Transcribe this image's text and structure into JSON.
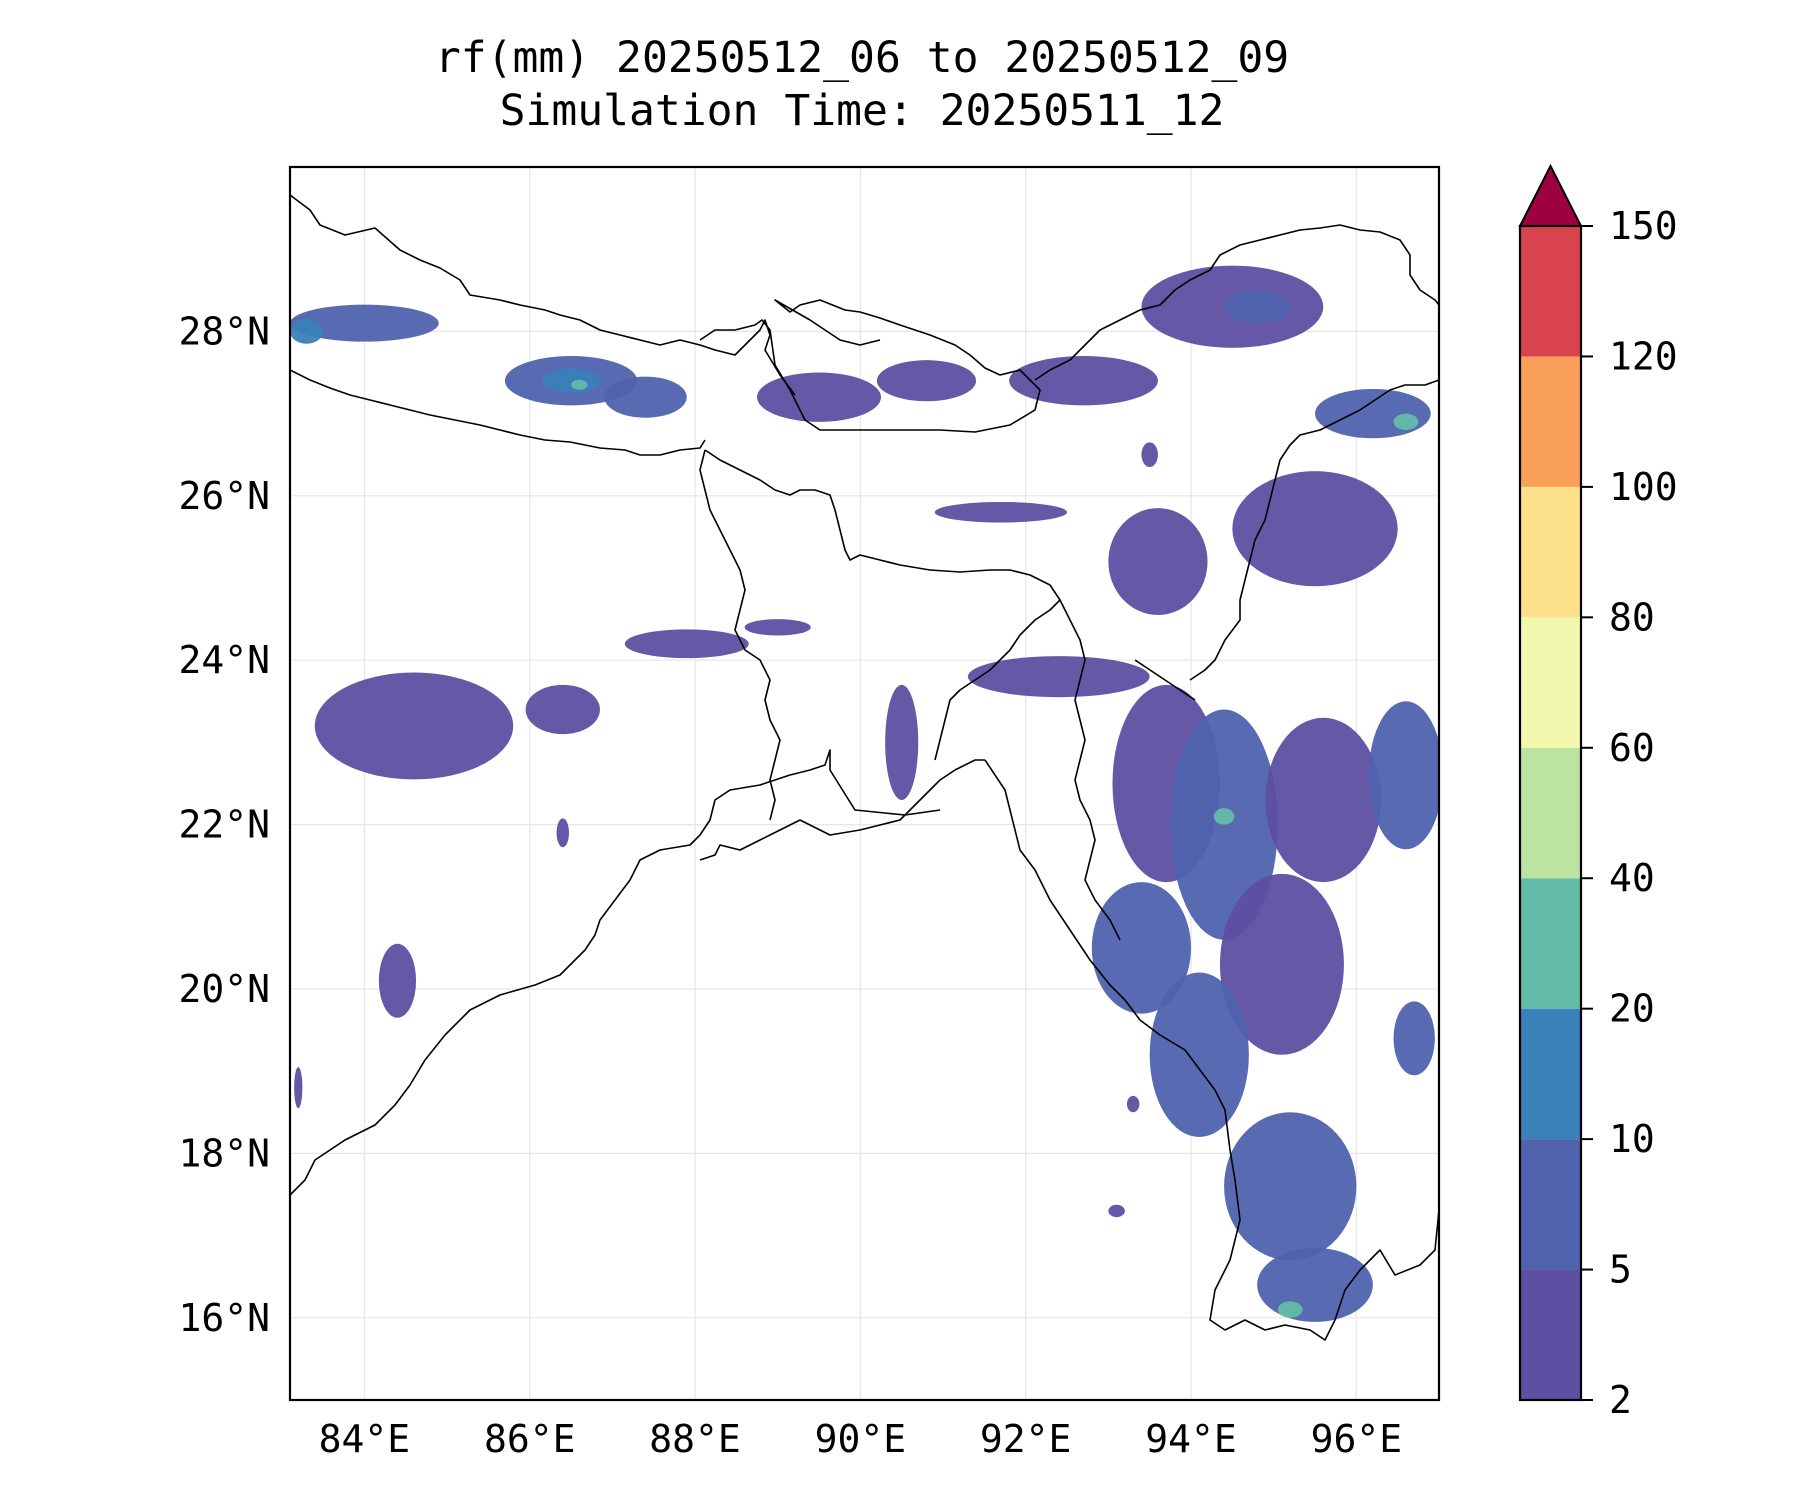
{
  "chart_data": {
    "type": "heatmap",
    "title_line1": "rf(mm) 20250512_06 to 20250512_09",
    "title_line2": "Simulation Time: 20250511_12",
    "xlim": [
      83.1,
      97.0
    ],
    "ylim": [
      15.0,
      30.0
    ],
    "x_ticks": [
      {
        "value": 84,
        "label": "84°E"
      },
      {
        "value": 86,
        "label": "86°E"
      },
      {
        "value": 88,
        "label": "88°E"
      },
      {
        "value": 90,
        "label": "90°E"
      },
      {
        "value": 92,
        "label": "92°E"
      },
      {
        "value": 94,
        "label": "94°E"
      },
      {
        "value": 96,
        "label": "96°E"
      }
    ],
    "y_ticks": [
      {
        "value": 16,
        "label": "16°N"
      },
      {
        "value": 18,
        "label": "18°N"
      },
      {
        "value": 20,
        "label": "20°N"
      },
      {
        "value": 22,
        "label": "22°N"
      },
      {
        "value": 24,
        "label": "24°N"
      },
      {
        "value": 26,
        "label": "26°N"
      },
      {
        "value": 28,
        "label": "28°N"
      }
    ],
    "grid": true,
    "colorbar": {
      "levels": [
        {
          "value": 2,
          "label": "2"
        },
        {
          "value": 5,
          "label": "5"
        },
        {
          "value": 10,
          "label": "10"
        },
        {
          "value": 20,
          "label": "20"
        },
        {
          "value": 40,
          "label": "40"
        },
        {
          "value": 60,
          "label": "60"
        },
        {
          "value": 80,
          "label": "80"
        },
        {
          "value": 100,
          "label": "100"
        },
        {
          "value": 120,
          "label": "120"
        },
        {
          "value": 150,
          "label": "150"
        }
      ],
      "colors": [
        "#5e4fa2",
        "#4f62ad",
        "#3a80b9",
        "#62bca8",
        "#bde3a0",
        "#f2f8ae",
        "#fce08a",
        "#f99f58",
        "#d9434e"
      ],
      "extend_color": "#9e0142",
      "extend": "max"
    },
    "rain_areas": [
      {
        "lon": 84.0,
        "lat": 28.1,
        "w": 1.8,
        "h": 0.45,
        "level": 1
      },
      {
        "lon": 83.3,
        "lat": 28.0,
        "w": 0.4,
        "h": 0.3,
        "level": 2
      },
      {
        "lon": 86.5,
        "lat": 27.4,
        "w": 1.6,
        "h": 0.6,
        "level": 1
      },
      {
        "lon": 86.5,
        "lat": 27.4,
        "w": 0.7,
        "h": 0.3,
        "level": 2
      },
      {
        "lon": 86.6,
        "lat": 27.35,
        "w": 0.2,
        "h": 0.12,
        "level": 3
      },
      {
        "lon": 87.4,
        "lat": 27.2,
        "w": 1.0,
        "h": 0.5,
        "level": 1
      },
      {
        "lon": 89.5,
        "lat": 27.2,
        "w": 1.5,
        "h": 0.6,
        "level": 0
      },
      {
        "lon": 90.8,
        "lat": 27.4,
        "w": 1.2,
        "h": 0.5,
        "level": 0
      },
      {
        "lon": 92.7,
        "lat": 27.4,
        "w": 1.8,
        "h": 0.6,
        "level": 0
      },
      {
        "lon": 94.5,
        "lat": 28.3,
        "w": 2.2,
        "h": 1.0,
        "level": 0
      },
      {
        "lon": 94.8,
        "lat": 28.3,
        "w": 0.8,
        "h": 0.4,
        "level": 1
      },
      {
        "lon": 96.2,
        "lat": 27.0,
        "w": 1.4,
        "h": 0.6,
        "level": 1
      },
      {
        "lon": 96.6,
        "lat": 26.9,
        "w": 0.3,
        "h": 0.2,
        "level": 3
      },
      {
        "lon": 91.7,
        "lat": 25.8,
        "w": 1.6,
        "h": 0.25,
        "level": 0
      },
      {
        "lon": 93.6,
        "lat": 25.2,
        "w": 1.2,
        "h": 1.3,
        "level": 0
      },
      {
        "lon": 95.5,
        "lat": 25.6,
        "w": 2.0,
        "h": 1.4,
        "level": 0
      },
      {
        "lon": 87.9,
        "lat": 24.2,
        "w": 1.5,
        "h": 0.35,
        "level": 0
      },
      {
        "lon": 89.0,
        "lat": 24.4,
        "w": 0.8,
        "h": 0.2,
        "level": 0
      },
      {
        "lon": 84.6,
        "lat": 23.2,
        "w": 2.4,
        "h": 1.3,
        "level": 0
      },
      {
        "lon": 86.4,
        "lat": 23.4,
        "w": 0.9,
        "h": 0.6,
        "level": 0
      },
      {
        "lon": 92.4,
        "lat": 23.8,
        "w": 2.2,
        "h": 0.5,
        "level": 0
      },
      {
        "lon": 93.7,
        "lat": 22.5,
        "w": 1.3,
        "h": 2.4,
        "level": 0
      },
      {
        "lon": 94.4,
        "lat": 22.0,
        "w": 1.3,
        "h": 2.8,
        "level": 1
      },
      {
        "lon": 94.4,
        "lat": 22.1,
        "w": 0.25,
        "h": 0.2,
        "level": 3
      },
      {
        "lon": 95.6,
        "lat": 22.3,
        "w": 1.4,
        "h": 2.0,
        "level": 0
      },
      {
        "lon": 96.6,
        "lat": 22.6,
        "w": 0.9,
        "h": 1.8,
        "level": 1
      },
      {
        "lon": 95.1,
        "lat": 20.3,
        "w": 1.5,
        "h": 2.2,
        "level": 0
      },
      {
        "lon": 93.4,
        "lat": 20.5,
        "w": 1.2,
        "h": 1.6,
        "level": 1
      },
      {
        "lon": 94.1,
        "lat": 19.2,
        "w": 1.2,
        "h": 2.0,
        "level": 1
      },
      {
        "lon": 96.7,
        "lat": 19.4,
        "w": 0.5,
        "h": 0.9,
        "level": 1
      },
      {
        "lon": 95.2,
        "lat": 17.6,
        "w": 1.6,
        "h": 1.8,
        "level": 1
      },
      {
        "lon": 95.5,
        "lat": 16.4,
        "w": 1.4,
        "h": 0.9,
        "level": 1
      },
      {
        "lon": 95.2,
        "lat": 16.1,
        "w": 0.3,
        "h": 0.2,
        "level": 3
      },
      {
        "lon": 90.5,
        "lat": 23.0,
        "w": 0.4,
        "h": 1.4,
        "level": 0
      },
      {
        "lon": 84.4,
        "lat": 20.1,
        "w": 0.45,
        "h": 0.9,
        "level": 0
      },
      {
        "lon": 86.4,
        "lat": 21.9,
        "w": 0.15,
        "h": 0.35,
        "level": 0
      },
      {
        "lon": 93.5,
        "lat": 26.5,
        "w": 0.2,
        "h": 0.3,
        "level": 0
      },
      {
        "lon": 93.3,
        "lat": 18.6,
        "w": 0.15,
        "h": 0.2,
        "level": 0
      },
      {
        "lon": 93.1,
        "lat": 17.3,
        "w": 0.2,
        "h": 0.15,
        "level": 0
      },
      {
        "lon": 83.2,
        "lat": 18.8,
        "w": 0.1,
        "h": 0.5,
        "level": 0
      }
    ]
  }
}
